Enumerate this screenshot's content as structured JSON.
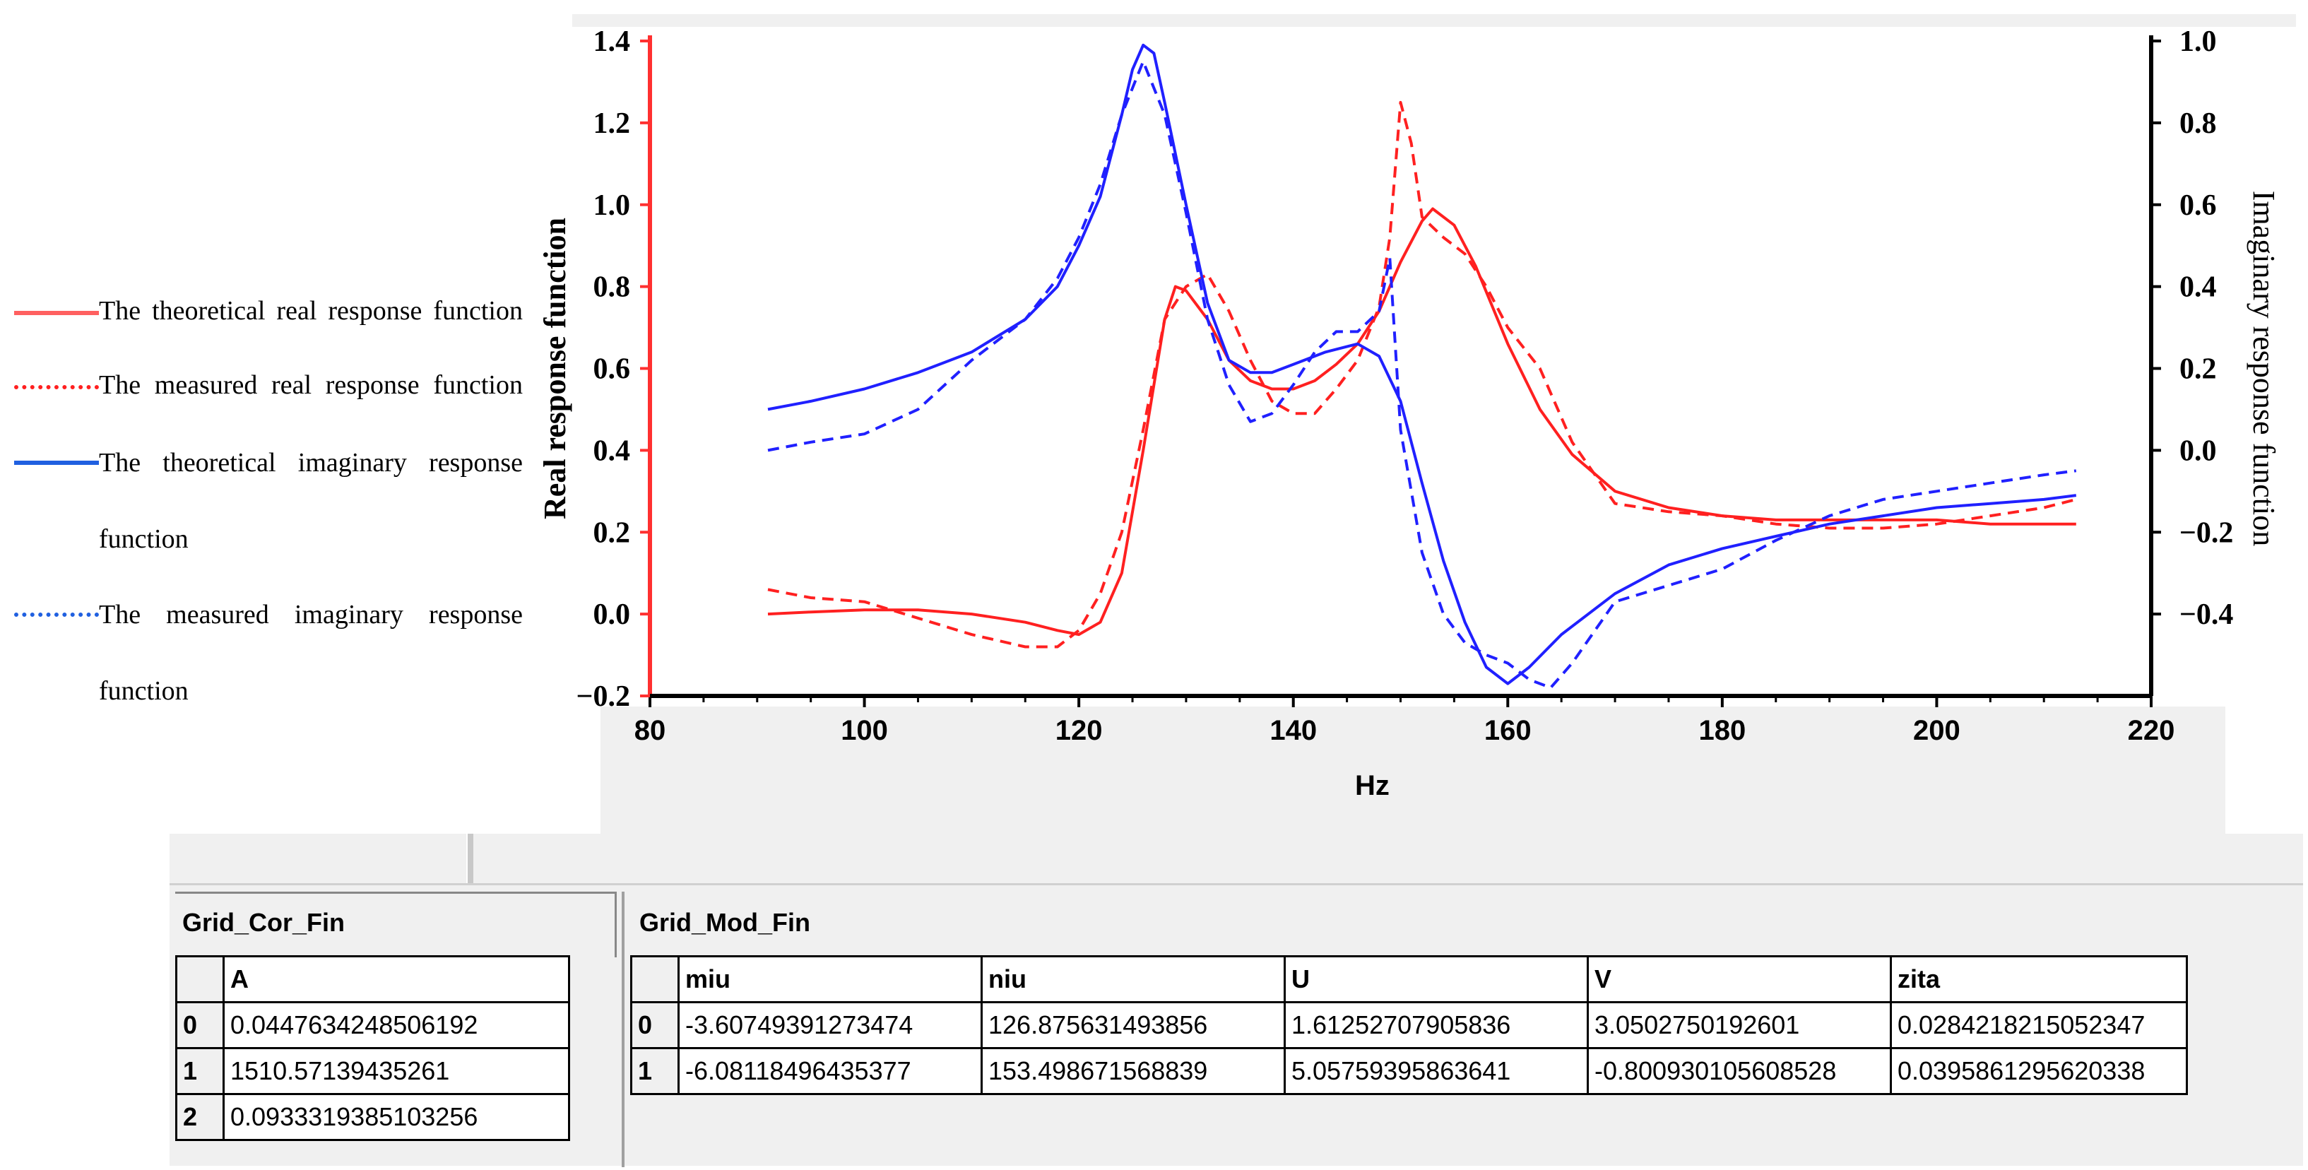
{
  "chart_data": {
    "type": "line",
    "xlabel": "Hz",
    "ylabel_left": "Real response function",
    "ylabel_right": "Imaginary response function",
    "xlim": [
      80,
      220
    ],
    "ylim_left": [
      -0.2,
      1.4
    ],
    "ylim_right": [
      -0.6,
      1.0
    ],
    "x_ticks": [
      80,
      100,
      120,
      140,
      160,
      180,
      200,
      220
    ],
    "x_tick_labels": [
      "80",
      "100",
      "120",
      "140",
      "160",
      "180",
      "200",
      "220"
    ],
    "y_left_ticks": [
      -0.2,
      0.0,
      0.2,
      0.4,
      0.6,
      0.8,
      1.0,
      1.2,
      1.4
    ],
    "y_left_tick_labels": [
      "−0.2",
      "0.0",
      "0.2",
      "0.4",
      "0.6",
      "0.8",
      "1.0",
      "1.2",
      "1.4"
    ],
    "y_right_ticks": [
      -0.4,
      -0.2,
      0.0,
      0.2,
      0.4,
      0.6,
      0.8,
      1.0
    ],
    "y_right_tick_labels": [
      "−0.4",
      "−0.2",
      "0.0",
      "0.2",
      "0.4",
      "0.6",
      "0.8",
      "1.0"
    ],
    "series": [
      {
        "name": "The theoretical real response function",
        "axis": "left",
        "color": "#ff2020",
        "style": "solid",
        "x": [
          91,
          95,
          100,
          105,
          110,
          115,
          118,
          120,
          122,
          124,
          126,
          128,
          129,
          130,
          132,
          134,
          136,
          138,
          140,
          142,
          144,
          146,
          148,
          150,
          152,
          153,
          155,
          157,
          160,
          163,
          166,
          170,
          175,
          180,
          185,
          190,
          195,
          200,
          205,
          210,
          213
        ],
        "y": [
          0.0,
          0.005,
          0.01,
          0.01,
          0.0,
          -0.02,
          -0.04,
          -0.05,
          -0.02,
          0.1,
          0.4,
          0.72,
          0.8,
          0.79,
          0.72,
          0.62,
          0.57,
          0.55,
          0.55,
          0.57,
          0.61,
          0.66,
          0.74,
          0.86,
          0.96,
          0.99,
          0.95,
          0.85,
          0.66,
          0.5,
          0.39,
          0.3,
          0.26,
          0.24,
          0.23,
          0.23,
          0.23,
          0.23,
          0.22,
          0.22,
          0.22
        ]
      },
      {
        "name": "The measured real response function",
        "axis": "left",
        "color": "#ff2020",
        "style": "dashed",
        "x": [
          91,
          95,
          100,
          105,
          110,
          115,
          118,
          120,
          122,
          124,
          126,
          128,
          130,
          132,
          134,
          136,
          138,
          140,
          142,
          144,
          146,
          148,
          149,
          150,
          151,
          152,
          154,
          156,
          158,
          160,
          163,
          166,
          170,
          175,
          180,
          185,
          190,
          195,
          200,
          205,
          210,
          213
        ],
        "y": [
          0.06,
          0.04,
          0.03,
          -0.01,
          -0.05,
          -0.08,
          -0.08,
          -0.04,
          0.05,
          0.2,
          0.45,
          0.72,
          0.8,
          0.83,
          0.74,
          0.62,
          0.52,
          0.49,
          0.49,
          0.55,
          0.62,
          0.75,
          0.92,
          1.25,
          1.15,
          0.97,
          0.92,
          0.88,
          0.8,
          0.7,
          0.6,
          0.42,
          0.27,
          0.25,
          0.24,
          0.22,
          0.21,
          0.21,
          0.22,
          0.24,
          0.26,
          0.28
        ]
      },
      {
        "name": "The theoretical imaginary response function",
        "axis": "right",
        "color": "#2020ff",
        "style": "solid",
        "x": [
          91,
          95,
          100,
          105,
          110,
          115,
          118,
          120,
          122,
          124,
          125,
          126,
          127,
          128,
          130,
          132,
          134,
          136,
          138,
          140,
          143,
          146,
          148,
          150,
          152,
          154,
          156,
          158,
          160,
          162,
          165,
          170,
          175,
          180,
          185,
          190,
          195,
          200,
          205,
          210,
          213
        ],
        "y": [
          0.1,
          0.12,
          0.15,
          0.19,
          0.24,
          0.32,
          0.4,
          0.5,
          0.62,
          0.82,
          0.93,
          0.99,
          0.97,
          0.85,
          0.6,
          0.36,
          0.22,
          0.19,
          0.19,
          0.21,
          0.24,
          0.26,
          0.23,
          0.12,
          -0.08,
          -0.27,
          -0.42,
          -0.53,
          -0.57,
          -0.53,
          -0.45,
          -0.35,
          -0.28,
          -0.24,
          -0.21,
          -0.18,
          -0.16,
          -0.14,
          -0.13,
          -0.12,
          -0.11
        ]
      },
      {
        "name": "The measured imaginary response function",
        "axis": "right",
        "color": "#2020ff",
        "style": "dashed",
        "x": [
          91,
          95,
          100,
          105,
          110,
          115,
          118,
          120,
          122,
          124,
          126,
          128,
          130,
          132,
          134,
          136,
          138,
          140,
          142,
          144,
          146,
          148,
          149,
          150,
          152,
          154,
          156,
          158,
          160,
          162,
          164,
          166,
          170,
          175,
          180,
          185,
          190,
          195,
          200,
          205,
          210,
          213
        ],
        "y": [
          0.0,
          0.02,
          0.04,
          0.1,
          0.22,
          0.32,
          0.42,
          0.52,
          0.65,
          0.82,
          0.95,
          0.82,
          0.58,
          0.32,
          0.16,
          0.07,
          0.09,
          0.16,
          0.24,
          0.29,
          0.29,
          0.34,
          0.47,
          0.05,
          -0.25,
          -0.4,
          -0.47,
          -0.5,
          -0.52,
          -0.56,
          -0.58,
          -0.52,
          -0.37,
          -0.33,
          -0.29,
          -0.22,
          -0.16,
          -0.12,
          -0.1,
          -0.08,
          -0.06,
          -0.05
        ]
      }
    ]
  },
  "grid_cor_fin": {
    "title": "Grid_Cor_Fin",
    "column": "A",
    "rows": [
      {
        "index": "0",
        "value": "0.0447634248506192"
      },
      {
        "index": "1",
        "value": "1510.57139435261"
      },
      {
        "index": "2",
        "value": "0.0933319385103256"
      }
    ]
  },
  "grid_mod_fin": {
    "title": "Grid_Mod_Fin",
    "columns": [
      "miu",
      "niu",
      "U",
      "V",
      "zita"
    ],
    "rows": [
      {
        "index": "0",
        "cells": [
          "-3.60749391273474",
          "126.875631493856",
          "1.61252707905836",
          "3.0502750192601",
          "0.0284218215052347"
        ]
      },
      {
        "index": "1",
        "cells": [
          "-6.08118496435377",
          "153.498671568839",
          "5.05759395863641",
          "-0.800930105608528",
          "0.0395861295620338"
        ]
      }
    ]
  },
  "legend": {
    "items": [
      {
        "text": "The theoretical real response function",
        "color": "#ff6060",
        "style": "solid"
      },
      {
        "text": "The measured real response function",
        "color": "#ff2020",
        "style": "dotted"
      },
      {
        "text": "The theoretical imaginary response",
        "text2": "function",
        "color": "#2060e0",
        "style": "solid"
      },
      {
        "text": "The measured imaginary response",
        "text2": "function",
        "color": "#2060e0",
        "style": "dotted"
      }
    ]
  }
}
